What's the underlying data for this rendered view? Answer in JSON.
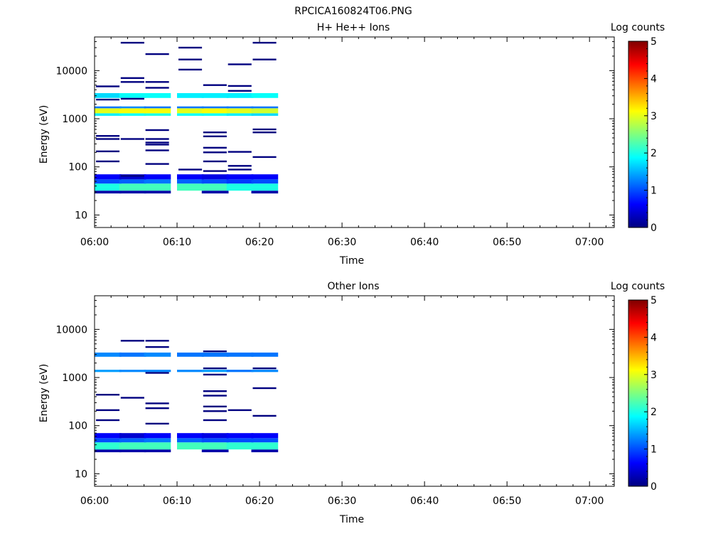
{
  "figure_title": "RPCICA160824T06.PNG",
  "colormap": [
    "#00007f",
    "#0000ff",
    "#007fff",
    "#00ffff",
    "#7fff7f",
    "#ffff00",
    "#ff7f00",
    "#ff0000",
    "#7f0000"
  ],
  "chart_data": [
    {
      "type": "heatmap",
      "title": "H+ He++ Ions",
      "xlabel": "Time",
      "ylabel": "Energy (eV)",
      "x_ticks": [
        "06:00",
        "06:10",
        "06:20",
        "06:30",
        "06:40",
        "06:50",
        "07:00"
      ],
      "xlim": [
        "06:00",
        "07:03"
      ],
      "y_scale": "log",
      "ylim": [
        5.5,
        50000
      ],
      "y_ticks": [
        "10",
        "100",
        "1000",
        "10000"
      ],
      "colorbar": {
        "label": "Log counts",
        "range": [
          0,
          5
        ],
        "ticks": [
          "0",
          "1",
          "2",
          "3",
          "4",
          "5"
        ]
      },
      "time_bins": [
        "06:00",
        "06:03",
        "06:06",
        "06:10",
        "06:13",
        "06:16",
        "06:19"
      ],
      "bin_width_min": 3.2,
      "bands": [
        {
          "e_lo": 28,
          "e_hi": 32,
          "levels": [
            0.2,
            0.2,
            0.2,
            null,
            0.2,
            null,
            0.2
          ]
        },
        {
          "e_lo": 32,
          "e_hi": 45,
          "levels": [
            2.0,
            2.2,
            2.2,
            2.2,
            2.2,
            2.0,
            2.0
          ]
        },
        {
          "e_lo": 45,
          "e_hi": 55,
          "levels": [
            1.0,
            1.1,
            1.2,
            1.1,
            1.0,
            0.9,
            1.0
          ]
        },
        {
          "e_lo": 55,
          "e_hi": 70,
          "levels": [
            0.6,
            0.4,
            0.6,
            0.6,
            0.5,
            0.6,
            0.6
          ]
        },
        {
          "e_lo": 1150,
          "e_hi": 1300,
          "levels": [
            1.8,
            1.9,
            2.0,
            1.9,
            1.9,
            1.8,
            1.7
          ]
        },
        {
          "e_lo": 1300,
          "e_hi": 1650,
          "levels": [
            3.0,
            3.1,
            3.1,
            3.0,
            3.1,
            3.0,
            2.9
          ]
        },
        {
          "e_lo": 1650,
          "e_hi": 1800,
          "levels": [
            1.2,
            1.3,
            1.2,
            1.2,
            1.2,
            1.2,
            1.2
          ]
        },
        {
          "e_lo": 2700,
          "e_hi": 3400,
          "levels": [
            1.7,
            1.9,
            1.9,
            1.8,
            1.8,
            1.8,
            1.9
          ]
        }
      ],
      "specks": [
        {
          "t": "06:00",
          "e": 4700
        },
        {
          "t": "06:00",
          "e": 2500
        },
        {
          "t": "06:00",
          "e": 440
        },
        {
          "t": "06:00",
          "e": 380
        },
        {
          "t": "06:00",
          "e": 210
        },
        {
          "t": "06:00",
          "e": 130
        },
        {
          "t": "06:03",
          "e": 38000
        },
        {
          "t": "06:03",
          "e": 7000
        },
        {
          "t": "06:03",
          "e": 5800
        },
        {
          "t": "06:03",
          "e": 2600
        },
        {
          "t": "06:03",
          "e": 380
        },
        {
          "t": "06:03",
          "e": 65
        },
        {
          "t": "06:06",
          "e": 22000
        },
        {
          "t": "06:06",
          "e": 5800
        },
        {
          "t": "06:06",
          "e": 4400
        },
        {
          "t": "06:06",
          "e": 580
        },
        {
          "t": "06:06",
          "e": 380
        },
        {
          "t": "06:06",
          "e": 320
        },
        {
          "t": "06:06",
          "e": 290
        },
        {
          "t": "06:06",
          "e": 220
        },
        {
          "t": "06:06",
          "e": 115
        },
        {
          "t": "06:10",
          "e": 30000
        },
        {
          "t": "06:10",
          "e": 17000
        },
        {
          "t": "06:10",
          "e": 10500
        },
        {
          "t": "06:10",
          "e": 88
        },
        {
          "t": "06:13",
          "e": 5000
        },
        {
          "t": "06:13",
          "e": 520
        },
        {
          "t": "06:13",
          "e": 430
        },
        {
          "t": "06:13",
          "e": 250
        },
        {
          "t": "06:13",
          "e": 200
        },
        {
          "t": "06:13",
          "e": 130
        },
        {
          "t": "06:13",
          "e": 82
        },
        {
          "t": "06:16",
          "e": 13500
        },
        {
          "t": "06:16",
          "e": 4800
        },
        {
          "t": "06:16",
          "e": 3800
        },
        {
          "t": "06:16",
          "e": 205
        },
        {
          "t": "06:16",
          "e": 105
        },
        {
          "t": "06:16",
          "e": 88
        },
        {
          "t": "06:19",
          "e": 38000
        },
        {
          "t": "06:19",
          "e": 17000
        },
        {
          "t": "06:19",
          "e": 600
        },
        {
          "t": "06:19",
          "e": 520
        },
        {
          "t": "06:19",
          "e": 160
        }
      ]
    },
    {
      "type": "heatmap",
      "title": "Other Ions",
      "xlabel": "Time",
      "ylabel": "Energy (eV)",
      "x_ticks": [
        "06:00",
        "06:10",
        "06:20",
        "06:30",
        "06:40",
        "06:50",
        "07:00"
      ],
      "xlim": [
        "06:00",
        "07:03"
      ],
      "y_scale": "log",
      "ylim": [
        5.5,
        50000
      ],
      "y_ticks": [
        "10",
        "100",
        "1000",
        "10000"
      ],
      "colorbar": {
        "label": "Log counts",
        "range": [
          0,
          5
        ],
        "ticks": [
          "0",
          "1",
          "2",
          "3",
          "4",
          "5"
        ]
      },
      "time_bins": [
        "06:00",
        "06:03",
        "06:06",
        "06:10",
        "06:13",
        "06:16",
        "06:19"
      ],
      "bin_width_min": 3.2,
      "bands": [
        {
          "e_lo": 28,
          "e_hi": 32,
          "levels": [
            0.2,
            0.2,
            0.2,
            null,
            0.2,
            null,
            0.2
          ]
        },
        {
          "e_lo": 32,
          "e_hi": 45,
          "levels": [
            2.1,
            2.2,
            2.2,
            2.2,
            2.2,
            2.1,
            2.1
          ]
        },
        {
          "e_lo": 45,
          "e_hi": 55,
          "levels": [
            1.0,
            1.1,
            1.2,
            1.1,
            1.0,
            1.0,
            1.0
          ]
        },
        {
          "e_lo": 55,
          "e_hi": 70,
          "levels": [
            0.6,
            0.4,
            0.6,
            0.6,
            0.5,
            0.6,
            0.6
          ]
        },
        {
          "e_lo": 1300,
          "e_hi": 1450,
          "levels": [
            1.4,
            1.3,
            1.3,
            1.3,
            1.4,
            1.2,
            1.3
          ]
        },
        {
          "e_lo": 2700,
          "e_hi": 3300,
          "levels": [
            1.3,
            1.2,
            1.3,
            1.2,
            1.2,
            1.2,
            1.2
          ]
        }
      ],
      "specks": [
        {
          "t": "06:00",
          "e": 440
        },
        {
          "t": "06:00",
          "e": 210
        },
        {
          "t": "06:00",
          "e": 130
        },
        {
          "t": "06:03",
          "e": 5800
        },
        {
          "t": "06:03",
          "e": 380
        },
        {
          "t": "06:06",
          "e": 5800
        },
        {
          "t": "06:06",
          "e": 4300
        },
        {
          "t": "06:06",
          "e": 1250
        },
        {
          "t": "06:06",
          "e": 290
        },
        {
          "t": "06:06",
          "e": 230
        },
        {
          "t": "06:06",
          "e": 110
        },
        {
          "t": "06:13",
          "e": 3500
        },
        {
          "t": "06:13",
          "e": 1550
        },
        {
          "t": "06:13",
          "e": 1150
        },
        {
          "t": "06:13",
          "e": 520
        },
        {
          "t": "06:13",
          "e": 420
        },
        {
          "t": "06:13",
          "e": 250
        },
        {
          "t": "06:13",
          "e": 200
        },
        {
          "t": "06:13",
          "e": 130
        },
        {
          "t": "06:16",
          "e": 210
        },
        {
          "t": "06:19",
          "e": 1550
        },
        {
          "t": "06:19",
          "e": 600
        },
        {
          "t": "06:19",
          "e": 160
        }
      ]
    }
  ]
}
